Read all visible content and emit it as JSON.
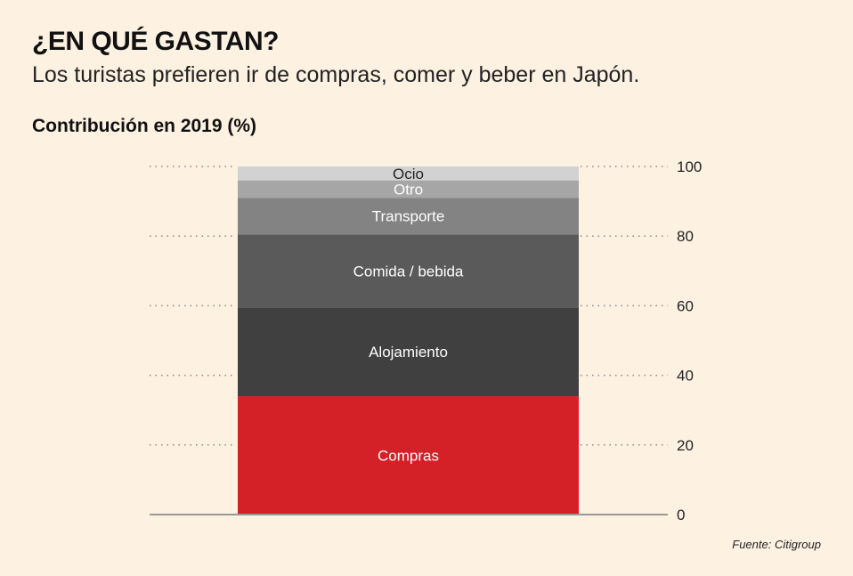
{
  "title": "¿EN QUÉ GASTAN?",
  "subtitle": "Los turistas prefieren ir de compras, comer y beber en Japón.",
  "source": "Fuente: Citigroup",
  "chart_data": {
    "type": "bar",
    "stacked": true,
    "title": "Contribución en 2019 (%)",
    "xlabel": "",
    "ylabel": "",
    "ylim": [
      0,
      100
    ],
    "yticks": [
      0,
      20,
      40,
      60,
      80,
      100
    ],
    "grid": true,
    "series": [
      {
        "name": "Compras",
        "value": 34,
        "color": "#d42027",
        "label_color": "#ffffff"
      },
      {
        "name": "Alojamiento",
        "value": 25.5,
        "color": "#404040",
        "label_color": "#ffffff"
      },
      {
        "name": "Comida / bebida",
        "value": 21,
        "color": "#5a5a5a",
        "label_color": "#ffffff"
      },
      {
        "name": "Transporte",
        "value": 10.5,
        "color": "#838383",
        "label_color": "#ffffff"
      },
      {
        "name": "Otro",
        "value": 5,
        "color": "#a6a6a6",
        "label_color": "#ffffff"
      },
      {
        "name": "Ocio",
        "value": 4,
        "color": "#d2d2d2",
        "label_color": "#222222"
      }
    ]
  }
}
